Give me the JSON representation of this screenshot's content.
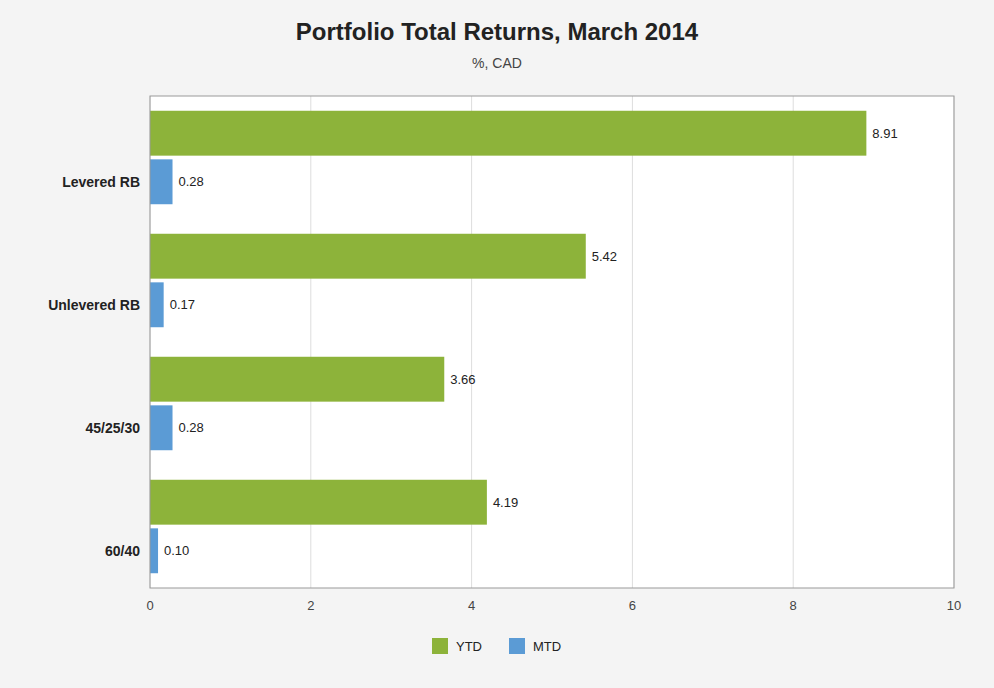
{
  "chart_data": {
    "type": "bar",
    "orientation": "horizontal",
    "title": "Portfolio Total Returns, March 2014",
    "subtitle": "%, CAD",
    "categories": [
      "Levered RB",
      "Unlevered RB",
      "45/25/30",
      "60/40"
    ],
    "series": [
      {
        "name": "YTD",
        "color": "#8DB33A",
        "values": [
          8.91,
          5.42,
          3.66,
          4.19
        ]
      },
      {
        "name": "MTD",
        "color": "#5B9BD5",
        "values": [
          0.28,
          0.17,
          0.28,
          0.1
        ],
        "value_labels": [
          "0.28",
          "0.17",
          "0.28",
          "0.10"
        ]
      }
    ],
    "xlim": [
      0,
      10
    ],
    "xticks": [
      0,
      2,
      4,
      6,
      8,
      10
    ],
    "grid": true,
    "legend": "bottom",
    "data_labels": true
  }
}
